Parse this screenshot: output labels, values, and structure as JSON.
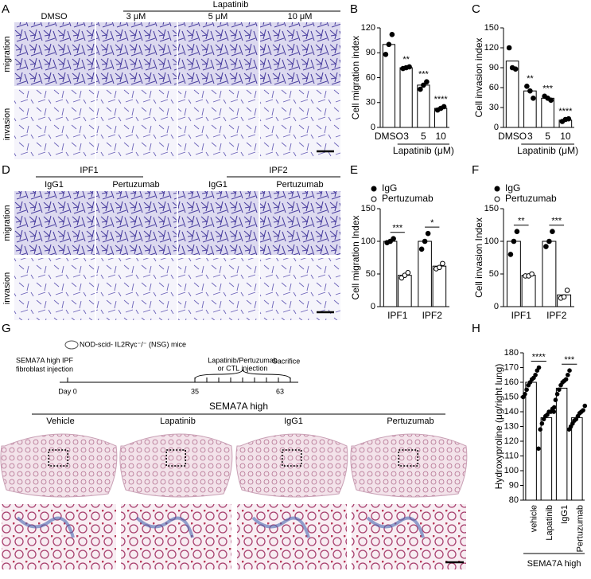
{
  "panel_labels": [
    "A",
    "B",
    "C",
    "D",
    "E",
    "F",
    "G",
    "H"
  ],
  "panel_a": {
    "group": "Lapatinib",
    "columns": [
      "DMSO",
      "3 μM",
      "5 μM",
      "10 μM"
    ],
    "rows": [
      "migration",
      "invasion"
    ]
  },
  "panel_d": {
    "groups": [
      "IPF1",
      "IPF2"
    ],
    "columns": [
      "IgG1",
      "Pertuzumab",
      "IgG1",
      "Pertuzumab"
    ],
    "rows": [
      "migration",
      "invasion"
    ]
  },
  "panel_g": {
    "mouse": "NOD-scid- IL2Rγc⁻/⁻ (NSG) mice",
    "injection": [
      "SEMA7A high IPF",
      "fibroblast injection"
    ],
    "treatment": [
      "Lapatinib/Pertuzumab",
      "or CTL injection"
    ],
    "sacrifice": "Sacrifice",
    "days": [
      "Day 0",
      "35",
      "63"
    ],
    "group": "SEMA7A high",
    "columns": [
      "Vehicle",
      "Lapatinib",
      "IgG1",
      "Pertuzumab"
    ]
  },
  "chart_data": [
    {
      "type": "bar",
      "ylabel": "Cell migration index",
      "xlabel": "Lapatinib (μM)",
      "categories": [
        "DMSO",
        "3",
        "5",
        "10"
      ],
      "values": [
        100,
        72,
        51,
        23
      ],
      "points": [
        [
          88,
          100,
          112
        ],
        [
          71,
          72,
          73
        ],
        [
          46,
          51,
          55
        ],
        [
          21,
          23,
          25
        ]
      ],
      "significance": [
        null,
        "**",
        "***",
        "****"
      ],
      "color": "#ffffff",
      "ylim": [
        0,
        120
      ],
      "yticks": [
        0,
        30,
        60,
        90,
        120
      ]
    },
    {
      "type": "bar",
      "ylabel": "Cell invasion index",
      "xlabel": "Lapatinib (μM)",
      "categories": [
        "DMSO",
        "3",
        "5",
        "10"
      ],
      "values": [
        100,
        55,
        44,
        11
      ],
      "points": [
        [
          120,
          90,
          88
        ],
        [
          62,
          55,
          44
        ],
        [
          47,
          44,
          41
        ],
        [
          9,
          12,
          13
        ]
      ],
      "significance": [
        null,
        "**",
        "***",
        "****"
      ],
      "color": "#ffffff",
      "ylim": [
        0,
        150
      ],
      "yticks": [
        0,
        30,
        60,
        90,
        120,
        150
      ]
    },
    {
      "type": "grouped_bar",
      "ylabel": "Cell migration Index",
      "categories": [
        "IPF1",
        "IPF2"
      ],
      "series": [
        {
          "name": "IgG",
          "color": "#000000",
          "values": [
            100,
            100
          ],
          "points": [
            [
              98,
              100,
              104
            ],
            [
              88,
              100,
              112
            ]
          ]
        },
        {
          "name": "Pertuzumab",
          "color": "#ffffff",
          "values": [
            48,
            62
          ],
          "points": [
            [
              44,
              48,
              52
            ],
            [
              58,
              60,
              66
            ]
          ]
        }
      ],
      "significance": [
        "***",
        "*"
      ],
      "ylim": [
        0,
        150
      ],
      "yticks": [
        0,
        50,
        100,
        150
      ]
    },
    {
      "type": "grouped_bar",
      "ylabel": "Cell invasion Index",
      "categories": [
        "IPF1",
        "IPF2"
      ],
      "series": [
        {
          "name": "IgG",
          "color": "#000000",
          "values": [
            100,
            100
          ],
          "points": [
            [
              80,
              100,
              115
            ],
            [
              92,
              100,
              115
            ]
          ]
        },
        {
          "name": "Pertuzumab",
          "color": "#ffffff",
          "values": [
            48,
            18
          ],
          "points": [
            [
              47,
              47,
              50
            ],
            [
              13,
              15,
              25
            ]
          ]
        }
      ],
      "significance": [
        "**",
        "***"
      ],
      "ylim": [
        0,
        150
      ],
      "yticks": [
        0,
        50,
        100,
        150
      ]
    },
    {
      "type": "bar",
      "ylabel": "Hydroxyproline (μg/right lung)",
      "group_label": "SEMA7A high",
      "categories": [
        "vehicle",
        "Lapatinib",
        "IgG1",
        "Pertuzumab"
      ],
      "values": [
        160,
        136,
        156,
        136
      ],
      "points": [
        [
          150,
          152,
          155,
          158,
          160,
          162,
          163,
          165,
          168,
          170
        ],
        [
          115,
          128,
          132,
          135,
          137,
          138,
          140,
          140,
          142,
          143
        ],
        [
          140,
          148,
          152,
          155,
          158,
          160,
          161,
          162,
          165,
          168
        ],
        [
          128,
          130,
          132,
          134,
          135,
          137,
          139,
          140,
          141,
          144
        ]
      ],
      "significance": [
        "****",
        "***"
      ],
      "color": "#ffffff",
      "ylim": [
        80,
        180
      ],
      "yticks": [
        80,
        90,
        100,
        110,
        120,
        130,
        140,
        150,
        160,
        170,
        180
      ]
    }
  ]
}
